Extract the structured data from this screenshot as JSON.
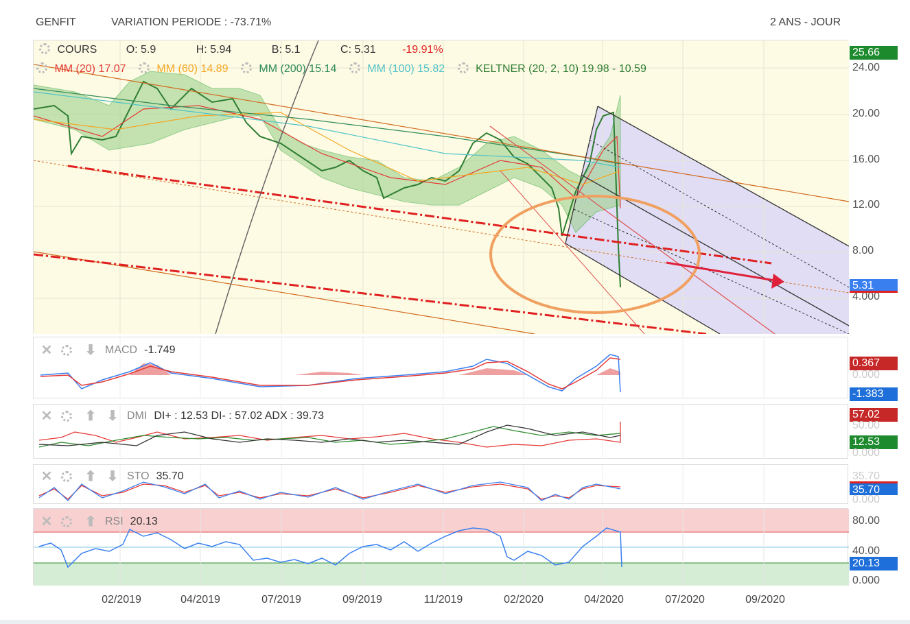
{
  "header": {
    "ticker": "GENFIT",
    "variation": "VARIATION PERIODE : -73.71%",
    "period": "2 ANS - JOUR"
  },
  "main": {
    "cours": {
      "label": "COURS",
      "o": "O: 5.9",
      "h": "H: 5.94",
      "b": "B: 5.1",
      "c": "C: 5.31",
      "chg": "-19.91%"
    },
    "mm20": {
      "label": "MM (20)",
      "value": "17.07",
      "color": "#e53935"
    },
    "mm60": {
      "label": "MM (60)",
      "value": "14.89",
      "color": "#f5a623"
    },
    "mm200": {
      "label": "MM (200)",
      "value": "15.14",
      "color": "#2e8b57"
    },
    "mm100": {
      "label": "MM (100)",
      "value": "15.82",
      "color": "#4fc3c8"
    },
    "keltner": {
      "label": "KELTNER (20, 2, 10)",
      "value": "19.98 - 10.59",
      "color": "#2e7d32"
    },
    "yticks": [
      "24.00",
      "20.00",
      "16.00",
      "12.00",
      "8.00"
    ],
    "last_high_tag": "25.66",
    "last_price_tag": "5.31",
    "hidden_tick": "4.000"
  },
  "macd": {
    "label": "MACD",
    "value": "-1.749",
    "tag1": "0.367",
    "tag2": "-1.383",
    "tick": "0.000"
  },
  "dmi": {
    "label": "DMI",
    "value": "DI+ : 12.53 DI- : 57.02 ADX : 39.73",
    "tag1": "57.02",
    "tag2": "12.53",
    "tick": "0.000",
    "tick_hidden": "50.00"
  },
  "sto": {
    "label": "STO",
    "value": "35.70",
    "tag1": "35.70",
    "tick": "0.000",
    "tick_hidden": "35.70"
  },
  "rsi": {
    "label": "RSI",
    "value": "20.13",
    "tag1": "20.13",
    "ticks": [
      "80.00",
      "40.00",
      "0.000"
    ]
  },
  "chart_data": {
    "type": "line",
    "title": "GENFIT",
    "x_axis_labels": [
      "02/2019",
      "04/2019",
      "07/2019",
      "09/2019",
      "11/2019",
      "02/2020",
      "04/2020",
      "07/2020",
      "09/2020"
    ],
    "price_series": {
      "name": "COURS",
      "x": [
        "2018-12",
        "2019-01",
        "2019-02",
        "2019-03",
        "2019-04",
        "2019-05",
        "2019-06",
        "2019-07",
        "2019-08",
        "2019-09",
        "2019-10",
        "2019-11",
        "2019-12",
        "2020-01",
        "2020-02",
        "2020-03",
        "2020-04"
      ],
      "values": [
        20.5,
        17.5,
        18.0,
        23.0,
        22.5,
        21.5,
        17.5,
        15.5,
        14.5,
        12.8,
        13.5,
        15.0,
        18.5,
        16.0,
        14.0,
        10.0,
        5.31
      ]
    },
    "ylim": [
      4,
      26
    ],
    "rsi_levels": {
      "overbought": 70,
      "oversold": 30,
      "mid": 50
    }
  }
}
